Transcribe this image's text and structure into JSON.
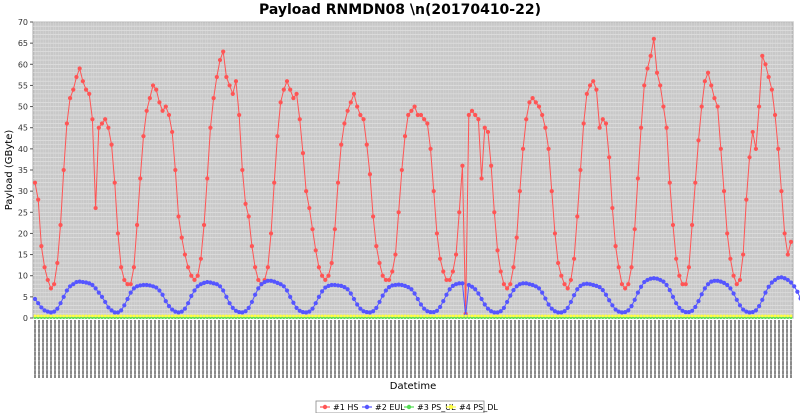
{
  "chart_data": {
    "type": "line",
    "title": "Payload RNMDN08 \\n(20170410-22)",
    "xlabel": "Datetime",
    "ylabel": "Payload (GByte)",
    "ylim": [
      0,
      70
    ],
    "yticks": [
      0,
      5,
      10,
      15,
      20,
      25,
      30,
      35,
      40,
      45,
      50,
      55,
      60,
      65,
      70
    ],
    "grid": true,
    "legend_position": "bottom-center",
    "x_tick_labels": "dense unreadable datetime labels (hourly)",
    "series": [
      {
        "name": "#1 HS",
        "color": "#ff5555",
        "marker": "circle",
        "values": [
          32,
          28,
          17,
          12,
          9,
          7,
          8,
          13,
          22,
          35,
          46,
          52,
          54,
          57,
          59,
          56,
          54,
          53,
          47,
          26,
          45,
          46,
          47,
          45,
          41,
          32,
          20,
          12,
          9,
          8,
          8,
          12,
          22,
          33,
          43,
          49,
          52,
          55,
          54,
          51,
          49,
          50,
          48,
          44,
          35,
          24,
          19,
          15,
          12,
          10,
          9,
          10,
          14,
          22,
          33,
          45,
          52,
          57,
          61,
          63,
          57,
          55,
          53,
          56,
          48,
          35,
          27,
          24,
          17,
          12,
          9,
          8,
          9,
          12,
          20,
          32,
          43,
          51,
          54,
          56,
          54,
          52,
          53,
          47,
          39,
          30,
          26,
          21,
          16,
          12,
          10,
          9,
          10,
          13,
          21,
          32,
          41,
          46,
          49,
          51,
          53,
          50,
          48,
          47,
          41,
          34,
          24,
          17,
          13,
          10,
          9,
          9,
          11,
          15,
          25,
          35,
          43,
          48,
          49,
          50,
          48,
          48,
          47,
          46,
          40,
          30,
          20,
          14,
          11,
          9,
          9,
          11,
          15,
          25,
          36,
          45,
          48,
          49,
          48,
          47,
          33,
          45,
          44,
          36,
          25,
          16,
          11,
          8,
          7,
          8,
          12,
          19,
          30,
          40,
          47,
          51,
          52,
          51,
          50,
          48,
          45,
          40,
          30,
          20,
          13,
          10,
          8,
          7,
          9,
          14,
          24,
          35,
          46,
          53,
          55,
          56,
          54,
          45,
          47,
          46,
          38,
          26,
          17,
          12,
          8,
          7,
          8,
          12,
          21,
          33,
          45,
          55,
          59,
          62,
          66,
          58,
          55,
          50,
          45,
          32,
          22,
          14,
          10,
          8,
          8,
          12,
          22,
          32,
          42,
          50,
          56,
          58,
          55,
          52,
          50,
          40,
          30,
          20,
          14,
          10,
          8,
          9,
          15,
          28,
          38,
          44,
          40,
          50,
          62,
          60,
          57,
          54,
          48,
          40,
          30,
          20,
          15,
          18
        ],
        "anomalies": [
          {
            "index": 135,
            "value": 1
          }
        ]
      },
      {
        "name": "#2 EUL",
        "color": "#5555ff",
        "marker": "circle",
        "values": [
          4.5,
          3.5,
          2.5,
          1.8,
          1.5,
          1.3,
          1.5,
          2.2,
          3.5,
          5,
          6.5,
          7.5,
          8,
          8.5,
          8.6,
          8.5,
          8.4,
          8.2,
          7.8,
          7,
          6,
          5,
          3.8,
          2.5,
          1.8,
          1.3,
          1.3,
          1.8,
          3,
          4.5,
          6,
          7,
          7.5,
          7.7,
          7.8,
          7.8,
          7.7,
          7.5,
          7.2,
          6.5,
          5.5,
          4,
          2.8,
          2,
          1.5,
          1.3,
          1.5,
          2.2,
          3.5,
          5.2,
          6.5,
          7.5,
          8,
          8.3,
          8.5,
          8.4,
          8.2,
          8,
          7.5,
          6.5,
          5,
          3.5,
          2.4,
          1.7,
          1.4,
          1.3,
          1.6,
          2.4,
          3.8,
          5.5,
          7,
          8,
          8.5,
          8.8,
          8.8,
          8.6,
          8.3,
          8,
          7.5,
          6.5,
          5,
          3.6,
          2.4,
          1.7,
          1.4,
          1.3,
          1.5,
          2.2,
          3.5,
          5,
          6.3,
          7.2,
          7.6,
          7.8,
          7.8,
          7.7,
          7.6,
          7.3,
          6.8,
          5.8,
          4.5,
          3.2,
          2.2,
          1.6,
          1.4,
          1.3,
          1.6,
          2.4,
          3.8,
          5.3,
          6.5,
          7.3,
          7.7,
          7.8,
          7.9,
          7.8,
          7.6,
          7.3,
          6.8,
          5.8,
          4.5,
          3.2,
          2.2,
          1.6,
          1.4,
          1.4,
          1.7,
          2.6,
          4,
          5.5,
          6.8,
          7.6,
          8,
          8.2,
          8.2,
          8,
          7.8,
          7.4,
          6.8,
          5.8,
          4.5,
          3.2,
          2.2,
          1.6,
          1.3,
          1.3,
          1.6,
          2.4,
          3.8,
          5.3,
          6.6,
          7.5,
          8,
          8.2,
          8.2,
          8,
          7.8,
          7.5,
          7,
          6,
          4.6,
          3.2,
          2.2,
          1.6,
          1.3,
          1.3,
          1.6,
          2.4,
          3.8,
          5.4,
          6.8,
          7.6,
          8,
          8.1,
          8,
          7.8,
          7.6,
          7.3,
          6.6,
          5.5,
          4.2,
          3,
          2,
          1.5,
          1.3,
          1.4,
          1.8,
          2.8,
          4.3,
          6,
          7.4,
          8.5,
          9,
          9.3,
          9.4,
          9.3,
          9,
          8.6,
          7.8,
          6.6,
          5,
          3.5,
          2.4,
          1.7,
          1.4,
          1.4,
          1.7,
          2.6,
          4,
          5.6,
          7,
          8,
          8.6,
          8.8,
          8.8,
          8.6,
          8.3,
          7.8,
          7,
          5.8,
          4.3,
          3,
          2,
          1.5,
          1.3,
          1.4,
          1.8,
          2.8,
          4.3,
          6,
          7.4,
          8.4,
          9,
          9.5,
          9.6,
          9.4,
          9,
          8.4,
          7.5,
          6.2,
          4.6,
          3.2,
          2.2,
          1.6,
          1.4,
          1.6,
          2.5,
          3.2
        ],
        "anomalies": [
          {
            "index": 135,
            "value": 0.5
          }
        ]
      },
      {
        "name": "#3 PS_UL",
        "color": "#55dd55",
        "marker": "circle",
        "values_constant": 0.1
      },
      {
        "name": "#4 PS_DL",
        "color": "#ffff44",
        "marker": "circle",
        "values_constant": 0.5
      }
    ]
  }
}
